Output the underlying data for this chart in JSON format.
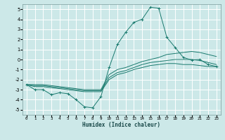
{
  "xlabel": "Humidex (Indice chaleur)",
  "bg_color": "#cce8e8",
  "grid_color": "#ffffff",
  "line_color": "#1a7a6e",
  "xlim": [
    -0.5,
    23.5
  ],
  "ylim": [
    -5.5,
    5.5
  ],
  "xticks": [
    0,
    1,
    2,
    3,
    4,
    5,
    6,
    7,
    8,
    9,
    10,
    11,
    12,
    13,
    14,
    15,
    16,
    17,
    18,
    19,
    20,
    21,
    22,
    23
  ],
  "yticks": [
    -5,
    -4,
    -3,
    -2,
    -1,
    0,
    1,
    2,
    3,
    4,
    5
  ],
  "series": [
    {
      "x": [
        0,
        1,
        2,
        3,
        4,
        5,
        6,
        7,
        8,
        9,
        10,
        11,
        12,
        13,
        14,
        15,
        16,
        17,
        18,
        19,
        20,
        21,
        22,
        23
      ],
      "y": [
        -2.5,
        -3.0,
        -3.0,
        -3.5,
        -3.3,
        -3.4,
        -4.0,
        -4.7,
        -4.8,
        -3.7,
        -0.8,
        1.5,
        2.7,
        3.7,
        4.0,
        5.2,
        5.1,
        2.2,
        1.2,
        0.2,
        -0.05,
        0.0,
        -0.5,
        -0.7
      ],
      "marker": "+"
    },
    {
      "x": [
        0,
        1,
        2,
        3,
        4,
        5,
        6,
        7,
        8,
        9,
        10,
        11,
        12,
        13,
        14,
        15,
        16,
        17,
        18,
        19,
        20,
        21,
        22,
        23
      ],
      "y": [
        -2.5,
        -2.7,
        -2.7,
        -2.8,
        -2.9,
        -3.0,
        -3.1,
        -3.2,
        -3.2,
        -3.2,
        -2.0,
        -1.5,
        -1.3,
        -1.0,
        -0.8,
        -0.6,
        -0.5,
        -0.4,
        -0.4,
        -0.5,
        -0.5,
        -0.6,
        -0.7,
        -0.7
      ],
      "marker": null
    },
    {
      "x": [
        0,
        1,
        2,
        3,
        4,
        5,
        6,
        7,
        8,
        9,
        10,
        11,
        12,
        13,
        14,
        15,
        16,
        17,
        18,
        19,
        20,
        21,
        22,
        23
      ],
      "y": [
        -2.5,
        -2.6,
        -2.6,
        -2.7,
        -2.8,
        -2.9,
        -3.0,
        -3.1,
        -3.1,
        -3.1,
        -1.8,
        -1.3,
        -1.1,
        -0.8,
        -0.5,
        -0.3,
        -0.2,
        -0.1,
        0.0,
        0.0,
        0.0,
        -0.1,
        -0.3,
        -0.5
      ],
      "marker": null
    },
    {
      "x": [
        0,
        1,
        2,
        3,
        4,
        5,
        6,
        7,
        8,
        9,
        10,
        11,
        12,
        13,
        14,
        15,
        16,
        17,
        18,
        19,
        20,
        21,
        22,
        23
      ],
      "y": [
        -2.5,
        -2.5,
        -2.5,
        -2.6,
        -2.7,
        -2.8,
        -2.9,
        -3.0,
        -3.0,
        -3.0,
        -1.5,
        -1.0,
        -0.8,
        -0.5,
        -0.2,
        0.0,
        0.2,
        0.5,
        0.6,
        0.7,
        0.8,
        0.7,
        0.5,
        0.3
      ],
      "marker": null
    }
  ]
}
